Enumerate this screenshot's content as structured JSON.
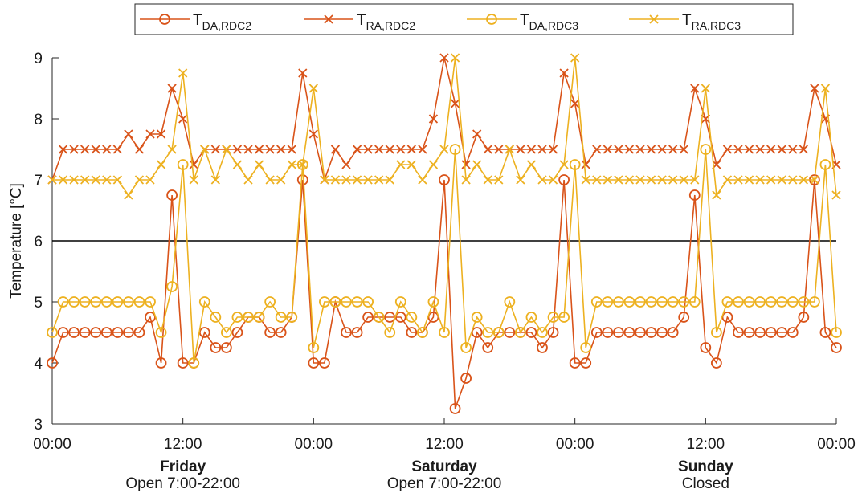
{
  "chart_data": {
    "type": "line",
    "title": "",
    "xlabel": "",
    "ylabel": "Temperature [°C]",
    "ylim": [
      3,
      9
    ],
    "yticks": [
      3,
      4,
      5,
      6,
      7,
      8,
      9
    ],
    "xlim_hours": [
      0,
      72
    ],
    "sample_step_hours": 1,
    "x_tick_labels": [
      {
        "hour": 0,
        "label": "00:00"
      },
      {
        "hour": 12,
        "label": "12:00"
      },
      {
        "hour": 24,
        "label": "00:00"
      },
      {
        "hour": 36,
        "label": "12:00"
      },
      {
        "hour": 48,
        "label": "00:00"
      },
      {
        "hour": 60,
        "label": "12:00"
      },
      {
        "hour": 72,
        "label": "00:00"
      }
    ],
    "day_labels": [
      {
        "hour": 12,
        "day": "Friday",
        "note": "Open 7:00-22:00"
      },
      {
        "hour": 36,
        "day": "Saturday",
        "note": "Open 7:00-22:00"
      },
      {
        "hour": 60,
        "day": "Sunday",
        "note": "Closed"
      }
    ],
    "reference_line": {
      "y": 6,
      "color": "#000000"
    },
    "legend": {
      "placement": "top-center",
      "columns": 4
    },
    "series": [
      {
        "name": "T",
        "name_sub": "DA,RDC2",
        "marker": "circle",
        "color": "#d95319",
        "values": [
          4.0,
          4.5,
          4.5,
          4.5,
          4.5,
          4.5,
          4.5,
          4.5,
          4.5,
          4.75,
          4.0,
          6.75,
          4.0,
          4.0,
          4.5,
          4.25,
          4.25,
          4.5,
          4.75,
          4.75,
          4.5,
          4.5,
          4.75,
          7.0,
          4.0,
          4.0,
          5.0,
          4.5,
          4.5,
          4.75,
          4.75,
          4.75,
          4.75,
          4.5,
          4.5,
          4.75,
          7.0,
          3.25,
          3.75,
          4.5,
          4.25,
          4.5,
          4.5,
          4.5,
          4.5,
          4.25,
          4.5,
          7.0,
          4.0,
          4.0,
          4.5,
          4.5,
          4.5,
          4.5,
          4.5,
          4.5,
          4.5,
          4.5,
          4.75,
          6.75,
          4.25,
          4.0,
          4.75,
          4.5,
          4.5,
          4.5,
          4.5,
          4.5,
          4.5,
          4.75,
          7.0,
          4.5,
          4.25
        ]
      },
      {
        "name": "T",
        "name_sub": "RA,RDC2",
        "marker": "x",
        "color": "#d95319",
        "values": [
          7.0,
          7.5,
          7.5,
          7.5,
          7.5,
          7.5,
          7.5,
          7.75,
          7.5,
          7.75,
          7.75,
          8.5,
          8.0,
          7.25,
          7.5,
          7.5,
          7.5,
          7.5,
          7.5,
          7.5,
          7.5,
          7.5,
          7.5,
          8.75,
          7.75,
          7.0,
          7.5,
          7.25,
          7.5,
          7.5,
          7.5,
          7.5,
          7.5,
          7.5,
          7.5,
          8.0,
          9.0,
          8.25,
          7.25,
          7.75,
          7.5,
          7.5,
          7.5,
          7.5,
          7.5,
          7.5,
          7.5,
          8.75,
          8.25,
          7.25,
          7.5,
          7.5,
          7.5,
          7.5,
          7.5,
          7.5,
          7.5,
          7.5,
          7.5,
          8.5,
          8.0,
          7.25,
          7.5,
          7.5,
          7.5,
          7.5,
          7.5,
          7.5,
          7.5,
          7.5,
          8.5,
          8.0,
          7.25
        ]
      },
      {
        "name": "T",
        "name_sub": "DA,RDC3",
        "marker": "circle",
        "color": "#edb120",
        "values": [
          4.5,
          5.0,
          5.0,
          5.0,
          5.0,
          5.0,
          5.0,
          5.0,
          5.0,
          5.0,
          4.5,
          5.25,
          7.25,
          4.0,
          5.0,
          4.75,
          4.5,
          4.75,
          4.75,
          4.75,
          5.0,
          4.75,
          4.75,
          7.25,
          4.25,
          5.0,
          5.0,
          5.0,
          5.0,
          5.0,
          4.75,
          4.5,
          5.0,
          4.75,
          4.5,
          5.0,
          4.5,
          7.5,
          4.25,
          4.75,
          4.5,
          4.5,
          5.0,
          4.5,
          4.75,
          4.5,
          4.75,
          4.75,
          7.25,
          4.25,
          5.0,
          5.0,
          5.0,
          5.0,
          5.0,
          5.0,
          5.0,
          5.0,
          5.0,
          5.0,
          7.5,
          4.5,
          5.0,
          5.0,
          5.0,
          5.0,
          5.0,
          5.0,
          5.0,
          5.0,
          5.0,
          7.25,
          4.5
        ]
      },
      {
        "name": "T",
        "name_sub": "RA,RDC3",
        "marker": "x",
        "color": "#edb120",
        "values": [
          7.0,
          7.0,
          7.0,
          7.0,
          7.0,
          7.0,
          7.0,
          6.75,
          7.0,
          7.0,
          7.25,
          7.5,
          8.75,
          7.0,
          7.5,
          7.0,
          7.5,
          7.25,
          7.0,
          7.25,
          7.0,
          7.0,
          7.25,
          7.25,
          8.5,
          7.0,
          7.0,
          7.0,
          7.0,
          7.0,
          7.0,
          7.0,
          7.25,
          7.25,
          7.0,
          7.25,
          7.5,
          9.0,
          7.0,
          7.25,
          7.0,
          7.0,
          7.5,
          7.0,
          7.25,
          7.0,
          7.0,
          7.25,
          9.0,
          7.0,
          7.0,
          7.0,
          7.0,
          7.0,
          7.0,
          7.0,
          7.0,
          7.0,
          7.0,
          7.0,
          8.5,
          6.75,
          7.0,
          7.0,
          7.0,
          7.0,
          7.0,
          7.0,
          7.0,
          7.0,
          7.0,
          8.5,
          6.75
        ]
      }
    ]
  }
}
